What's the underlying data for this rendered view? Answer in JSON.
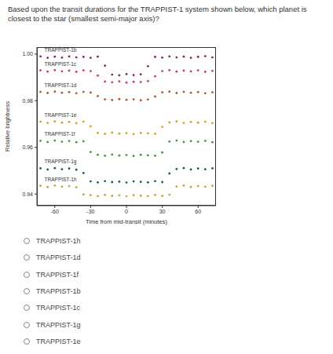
{
  "question": "Based upon the transit durations for the TRAPPIST-1 system shown below, which planet is closest to the star (smallest semi-major axis)?",
  "chart_data": {
    "type": "scatter",
    "x_label": "Time from mid-transit (minutes)",
    "y_label": "Relative brightness",
    "marker": "circle",
    "xlim": [
      -75,
      75
    ],
    "xticks": [
      -60,
      -30,
      0,
      30,
      60
    ],
    "ylim": [
      0.935,
      1.003
    ],
    "yticks": [
      0.94,
      0.96,
      0.98,
      {
        "value": 1,
        "label": "1.00"
      }
    ],
    "x": [
      -72,
      -66,
      -60,
      -54,
      -48,
      -42,
      -36,
      -30,
      -24,
      -18,
      -12,
      -6,
      0,
      6,
      12,
      18,
      24,
      30,
      36,
      42,
      48,
      54,
      60,
      66,
      72
    ],
    "series": [
      {
        "name": "TRAPPIST-1b",
        "color": "#7a2a6a",
        "values": [
          0.999,
          0.9984,
          0.9989,
          0.9985,
          0.999,
          0.9986,
          0.9988,
          0.9984,
          0.9989,
          0.995,
          0.9912,
          0.9909,
          0.9914,
          0.991,
          0.9913,
          0.9948,
          0.9988,
          0.9985,
          0.999,
          0.9986,
          0.9989,
          0.9984,
          0.9988,
          0.9991,
          0.9986
        ]
      },
      {
        "name": "TRAPPIST-1c",
        "color": "#c23b7c",
        "values": [
          0.993,
          0.9925,
          0.9931,
          0.9926,
          0.9929,
          0.9924,
          0.993,
          0.9927,
          0.9908,
          0.9882,
          0.9879,
          0.9883,
          0.9878,
          0.9881,
          0.988,
          0.9884,
          0.9905,
          0.9927,
          0.9931,
          0.9925,
          0.9929,
          0.9926,
          0.993,
          0.9924,
          0.9928
        ]
      },
      {
        "name": "TRAPPIST-1d",
        "color": "#b4552c",
        "values": [
          0.9838,
          0.9833,
          0.9839,
          0.9834,
          0.9837,
          0.9832,
          0.9838,
          0.9835,
          0.982,
          0.9806,
          0.9803,
          0.9807,
          0.9804,
          0.9806,
          0.9802,
          0.9805,
          0.9818,
          0.9836,
          0.9839,
          0.9833,
          0.9838,
          0.9834,
          0.9837,
          0.9832,
          0.9836
        ]
      },
      {
        "name": "TRAPPIST-1e",
        "color": "#d6a11e",
        "values": [
          0.971,
          0.9705,
          0.9711,
          0.9706,
          0.9709,
          0.9704,
          0.971,
          0.969,
          0.9662,
          0.9658,
          0.9663,
          0.9659,
          0.9661,
          0.9657,
          0.9662,
          0.966,
          0.9658,
          0.9688,
          0.9707,
          0.9711,
          0.9705,
          0.9709,
          0.9706,
          0.971,
          0.9704
        ]
      },
      {
        "name": "TRAPPIST-1f",
        "color": "#3e9a3e",
        "values": [
          0.9628,
          0.9623,
          0.9629,
          0.9624,
          0.9627,
          0.9622,
          0.9626,
          0.958,
          0.9568,
          0.9564,
          0.9569,
          0.9565,
          0.9567,
          0.9563,
          0.9568,
          0.9566,
          0.9564,
          0.9578,
          0.9625,
          0.9629,
          0.9623,
          0.9627,
          0.9624,
          0.9628,
          0.9622
        ]
      },
      {
        "name": "TRAPPIST-1g",
        "color": "#1f5a4c",
        "values": [
          0.951,
          0.9505,
          0.9511,
          0.9506,
          0.9509,
          0.9504,
          0.949,
          0.9454,
          0.945,
          0.9455,
          0.9451,
          0.9453,
          0.9449,
          0.9454,
          0.9452,
          0.945,
          0.9455,
          0.9451,
          0.9488,
          0.9507,
          0.9511,
          0.9505,
          0.9509,
          0.9506,
          0.951
        ]
      },
      {
        "name": "TRAPPIST-1h",
        "color": "#c4a43c",
        "values": [
          0.9435,
          0.943,
          0.9436,
          0.9431,
          0.9434,
          0.9429,
          0.9398,
          0.9395,
          0.9391,
          0.9396,
          0.9392,
          0.9394,
          0.939,
          0.9395,
          0.9393,
          0.9391,
          0.9396,
          0.9392,
          0.9397,
          0.9432,
          0.9436,
          0.943,
          0.9434,
          0.9431,
          0.9435
        ]
      }
    ]
  },
  "options": [
    "TRAPPIST-1h",
    "TRAPPIST-1d",
    "TRAPPIST-1f",
    "TRAPPIST-1b",
    "TRAPPIST-1c",
    "TRAPPIST-1g",
    "TRAPPIST-1e"
  ]
}
